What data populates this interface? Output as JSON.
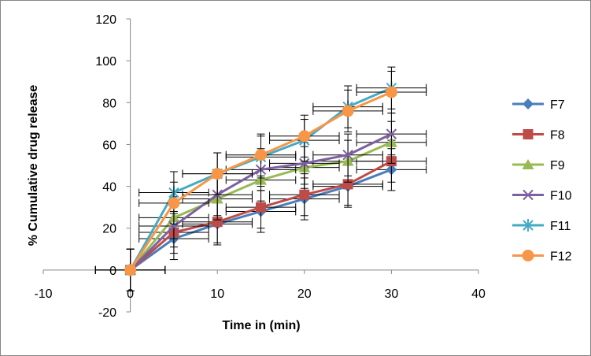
{
  "chart_data": {
    "type": "line",
    "title": "",
    "xlabel": "Time in (min)",
    "ylabel": "% Cumulative drug release",
    "xlim": [
      -10,
      40
    ],
    "ylim": [
      -20,
      120
    ],
    "xticks": [
      -10,
      0,
      10,
      20,
      30,
      40
    ],
    "yticks": [
      -20,
      0,
      20,
      40,
      60,
      80,
      100,
      120
    ],
    "x": [
      0,
      5,
      10,
      15,
      20,
      25,
      30
    ],
    "error_x": 4,
    "error_y": 10,
    "legend_position": "right",
    "series": [
      {
        "name": "F7",
        "color": "#4a7ebb",
        "marker": "diamond",
        "values": [
          0,
          15,
          22,
          28,
          34,
          40,
          48
        ]
      },
      {
        "name": "F8",
        "color": "#be4b48",
        "marker": "square",
        "values": [
          0,
          18,
          23,
          30,
          36,
          41,
          52
        ]
      },
      {
        "name": "F9",
        "color": "#98b954",
        "marker": "triangle",
        "values": [
          0,
          25,
          34,
          43,
          49,
          52,
          61
        ]
      },
      {
        "name": "F10",
        "color": "#7d60a0",
        "marker": "x",
        "values": [
          0,
          21,
          36,
          48,
          51,
          55,
          65
        ]
      },
      {
        "name": "F11",
        "color": "#46aac5",
        "marker": "star",
        "values": [
          0,
          37,
          46,
          54,
          62,
          78,
          87
        ]
      },
      {
        "name": "F12",
        "color": "#f79646",
        "marker": "circle",
        "values": [
          0,
          32,
          46,
          55,
          64,
          76,
          85
        ]
      }
    ]
  }
}
